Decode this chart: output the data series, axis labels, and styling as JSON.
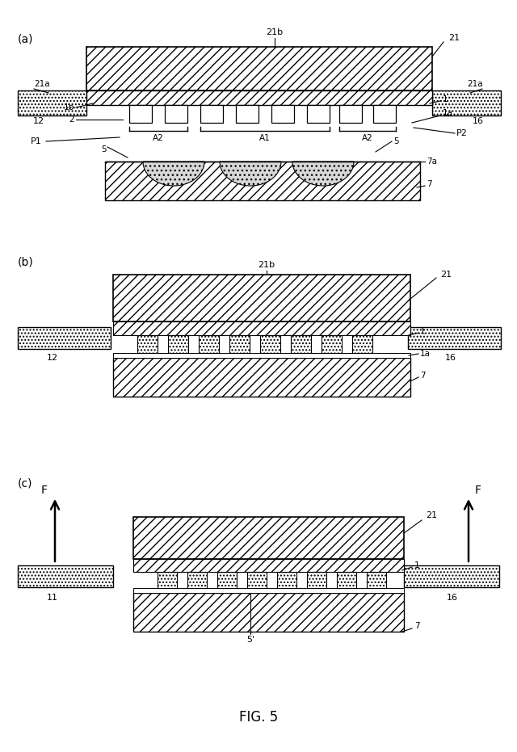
{
  "fig_width": 6.4,
  "fig_height": 9.31,
  "bg_color": "#ffffff",
  "title": "FIG. 5",
  "panel_labels": [
    "(a)",
    "(b)",
    "(c)"
  ]
}
